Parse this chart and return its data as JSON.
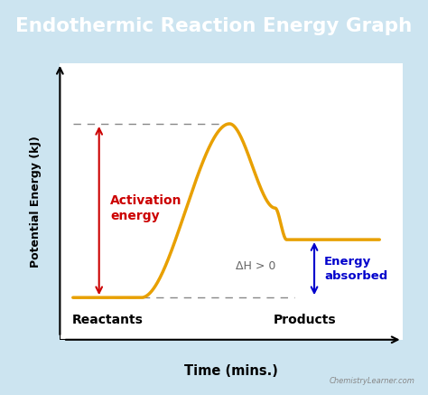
{
  "title": "Endothermic Reaction Energy Graph",
  "title_bg_color": "#2196C8",
  "title_text_color": "white",
  "outer_bg_color": "#cce4f0",
  "plot_bg_color": "#ffffff",
  "xlabel": "Time (mins.)",
  "ylabel": "Potential Energy (kJ)",
  "curve_color": "#e8a000",
  "curve_linewidth": 2.5,
  "reactant_level": 0.16,
  "product_level": 0.38,
  "peak_level": 0.82,
  "dashed_line_color": "#888888",
  "activation_arrow_color": "#cc0000",
  "activation_text_color": "#cc0000",
  "activation_label": "Activation\nenergy",
  "delta_h_color": "#666666",
  "delta_h_label": "ΔH > 0",
  "energy_absorbed_color": "#0000cc",
  "energy_absorbed_label": "Energy\nabsorbed",
  "reactants_label": "Reactants",
  "products_label": "Products",
  "watermark": "ChemistryLearner.com",
  "xlim": [
    0,
    1.05
  ],
  "ylim": [
    0,
    1.05
  ]
}
